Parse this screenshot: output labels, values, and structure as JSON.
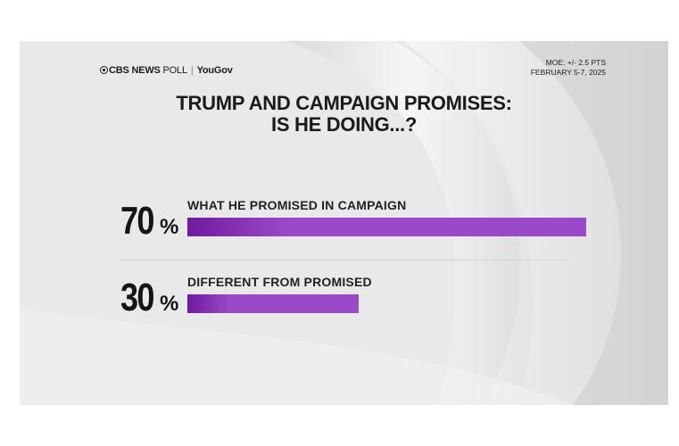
{
  "header": {
    "brand_primary": "CBS NEWS",
    "brand_poll": "POLL",
    "brand_partner": "YouGov",
    "moe": "MOE: +/- 2.5 PTS",
    "dates": "FEBRUARY 5-7, 2025"
  },
  "title": {
    "line1": "TRUMP AND CAMPAIGN PROMISES:",
    "line2": "IS HE DOING...?"
  },
  "chart_data": {
    "type": "bar",
    "orientation": "horizontal",
    "title": "TRUMP AND CAMPAIGN PROMISES: IS HE DOING...?",
    "categories": [
      "WHAT HE PROMISED IN CAMPAIGN",
      "DIFFERENT FROM PROMISED"
    ],
    "values": [
      70,
      30
    ],
    "data_labels": [
      "70",
      "30"
    ],
    "unit": "%",
    "xlim": [
      0,
      100
    ],
    "grid": false,
    "legend": "none",
    "bar_color": "#9a4ac6",
    "bar_color_dark": "#6f1aa0"
  }
}
